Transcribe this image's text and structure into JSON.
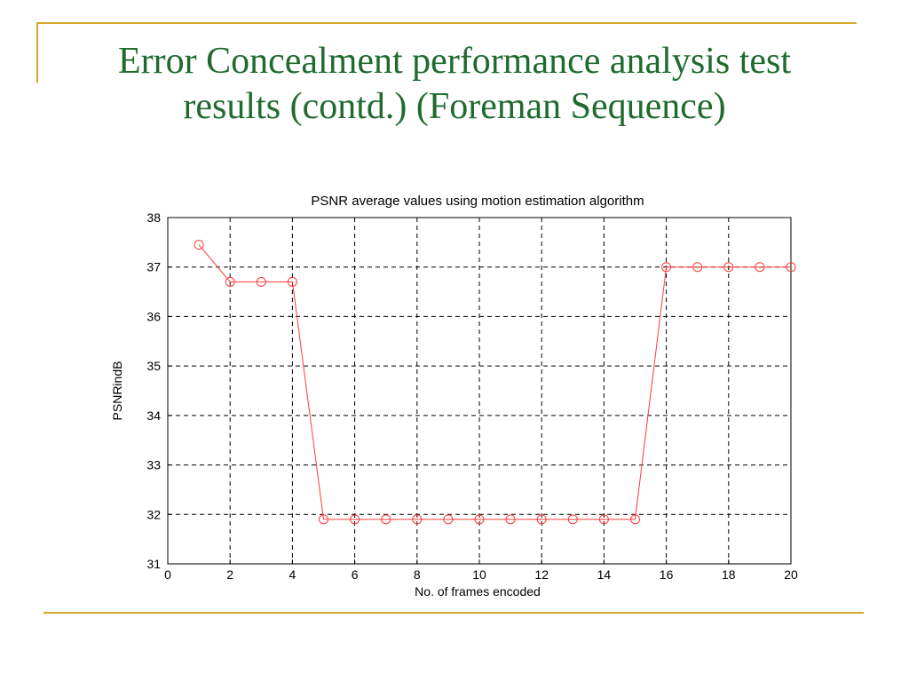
{
  "slide": {
    "title_line1": "Error Concealment performance analysis test",
    "title_line2": "results (contd.) (Foreman Sequence)",
    "accent_color": "#d4a72c",
    "title_color": "#1f6b2e"
  },
  "chart_data": {
    "type": "line",
    "title": "PSNR average values using motion estimation algorithm",
    "xlabel": "No. of frames encoded",
    "ylabel": "PSNRindB",
    "xlim": [
      0,
      20
    ],
    "ylim": [
      31,
      38
    ],
    "xticks": [
      0,
      2,
      4,
      6,
      8,
      10,
      12,
      14,
      16,
      18,
      20
    ],
    "yticks": [
      31,
      32,
      33,
      34,
      35,
      36,
      37,
      38
    ],
    "grid": true,
    "series_color": "#ff3b3b",
    "marker": "circle",
    "x": [
      1,
      2,
      3,
      4,
      5,
      6,
      7,
      8,
      9,
      10,
      11,
      12,
      13,
      14,
      15,
      16,
      17,
      18,
      19,
      20
    ],
    "y": [
      37.45,
      36.7,
      36.7,
      36.7,
      31.9,
      31.9,
      31.9,
      31.9,
      31.9,
      31.9,
      31.9,
      31.9,
      31.9,
      31.9,
      31.9,
      37.0,
      37.0,
      37.0,
      37.0,
      37.0
    ]
  }
}
